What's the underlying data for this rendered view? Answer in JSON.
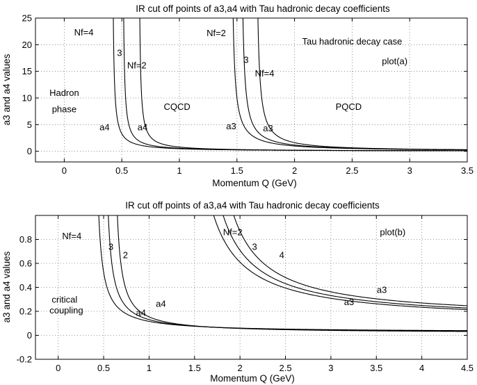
{
  "chart_data": [
    {
      "type": "line",
      "title": "IR cut off points of a3,a4 with Tau hadronic decay coefficients",
      "xlabel": "Momentum Q (GeV)",
      "ylabel": "a3 and a4 values",
      "xlim": [
        -0.25,
        3.5
      ],
      "ylim": [
        -2,
        25
      ],
      "xticks": [
        0,
        0.5,
        1,
        1.5,
        2,
        2.5,
        3,
        3.5
      ],
      "xtick_labels": [
        "0",
        "0.5",
        "1",
        "1.5",
        "2",
        "2.5",
        "3",
        "3.5"
      ],
      "yticks": [
        0,
        5,
        10,
        15,
        20,
        25
      ],
      "ytick_labels": [
        "0",
        "5",
        "10",
        "15",
        "20",
        "25"
      ],
      "grid": true,
      "series": [
        {
          "name": "a4 Nf=4",
          "kind": "pole",
          "pole": 0.415,
          "scale": 0.28,
          "offset": 0.0
        },
        {
          "name": "a4 Nf=3",
          "kind": "pole",
          "pole": 0.505,
          "scale": 0.28,
          "offset": 0.0
        },
        {
          "name": "a4 Nf=2",
          "kind": "pole",
          "pole": 0.645,
          "scale": 0.28,
          "offset": 0.0
        },
        {
          "name": "a3 Nf=2",
          "kind": "pole",
          "pole": 1.445,
          "scale": 0.55,
          "offset": 0.0
        },
        {
          "name": "a3 Nf=3",
          "kind": "pole",
          "pole": 1.53,
          "scale": 0.55,
          "offset": 0.0
        },
        {
          "name": "a3 Nf=4",
          "kind": "pole",
          "pole": 1.66,
          "scale": 0.55,
          "offset": 0.0
        }
      ],
      "annotations": [
        {
          "text": "Nf=4",
          "x": 0.17,
          "y": 22.3
        },
        {
          "text": "3",
          "x": 0.48,
          "y": 18.5
        },
        {
          "text": "Nf=2",
          "x": 0.63,
          "y": 16.1
        },
        {
          "text": "Hadron",
          "x": 0.0,
          "y": 11.0
        },
        {
          "text": "phase",
          "x": 0.0,
          "y": 7.9
        },
        {
          "text": "CQCD",
          "x": 0.98,
          "y": 8.4
        },
        {
          "text": "a4",
          "x": 0.35,
          "y": 4.5
        },
        {
          "text": "a4",
          "x": 0.68,
          "y": 4.5
        },
        {
          "text": "Nf=2",
          "x": 1.32,
          "y": 22.2
        },
        {
          "text": "3",
          "x": 1.58,
          "y": 17.2
        },
        {
          "text": "Nf=4",
          "x": 1.74,
          "y": 14.6
        },
        {
          "text": "a3",
          "x": 1.45,
          "y": 4.7
        },
        {
          "text": "a3",
          "x": 1.77,
          "y": 4.3
        },
        {
          "text": "Tau hadronic decay case",
          "x": 2.5,
          "y": 20.6
        },
        {
          "text": "plot(a)",
          "x": 2.87,
          "y": 16.9
        },
        {
          "text": "PQCD",
          "x": 2.47,
          "y": 8.4
        }
      ]
    },
    {
      "type": "line",
      "title": "IR cut off points of a3,a4 with Tau hadronic decay coefficients",
      "xlabel": "Momentum Q (GeV)",
      "ylabel": "a3 and a4 values",
      "xlim": [
        -0.25,
        4.5
      ],
      "ylim": [
        -0.2,
        1.0
      ],
      "xticks": [
        0,
        0.5,
        1,
        1.5,
        2,
        2.5,
        3,
        3.5,
        4,
        4.5
      ],
      "xtick_labels": [
        "0",
        "0.5",
        "1",
        "1.5",
        "2",
        "2.5",
        "3",
        "3.5",
        "4",
        "4.5"
      ],
      "yticks": [
        -0.2,
        0,
        0.2,
        0.4,
        0.6,
        0.8
      ],
      "ytick_labels": [
        "-0.2",
        "0",
        "0.2",
        "0.4",
        "0.6",
        "0.8"
      ],
      "grid": true,
      "series": [
        {
          "name": "a4 Nf=4",
          "kind": "pole",
          "pole": 0.39,
          "scale": 0.055,
          "offset": 0.026
        },
        {
          "name": "a4 Nf=3",
          "kind": "pole",
          "pole": 0.495,
          "scale": 0.055,
          "offset": 0.022
        },
        {
          "name": "a4 Nf=2",
          "kind": "pole",
          "pole": 0.595,
          "scale": 0.055,
          "offset": 0.018
        },
        {
          "name": "a3 Nf=2",
          "kind": "pole",
          "pole": 1.34,
          "scale": 0.33,
          "offset": 0.11
        },
        {
          "name": "a3 Nf=3",
          "kind": "pole",
          "pole": 1.44,
          "scale": 0.33,
          "offset": 0.12
        },
        {
          "name": "a3 Nf=4",
          "kind": "pole",
          "pole": 1.55,
          "scale": 0.33,
          "offset": 0.135
        }
      ],
      "annotations": [
        {
          "text": "Nf=4",
          "x": 0.15,
          "y": 0.83
        },
        {
          "text": "3",
          "x": 0.58,
          "y": 0.74
        },
        {
          "text": "2",
          "x": 0.74,
          "y": 0.67
        },
        {
          "text": "critical",
          "x": 0.07,
          "y": 0.3
        },
        {
          "text": "coupling",
          "x": 0.09,
          "y": 0.21
        },
        {
          "text": "a4",
          "x": 1.13,
          "y": 0.264
        },
        {
          "text": "a4",
          "x": 0.91,
          "y": 0.189
        },
        {
          "text": "Nf=2",
          "x": 1.92,
          "y": 0.86
        },
        {
          "text": "3",
          "x": 2.16,
          "y": 0.74
        },
        {
          "text": "4",
          "x": 2.46,
          "y": 0.67
        },
        {
          "text": "plot(b)",
          "x": 3.68,
          "y": 0.86
        },
        {
          "text": "a3",
          "x": 3.56,
          "y": 0.38
        },
        {
          "text": "a3",
          "x": 3.2,
          "y": 0.278
        }
      ]
    }
  ]
}
